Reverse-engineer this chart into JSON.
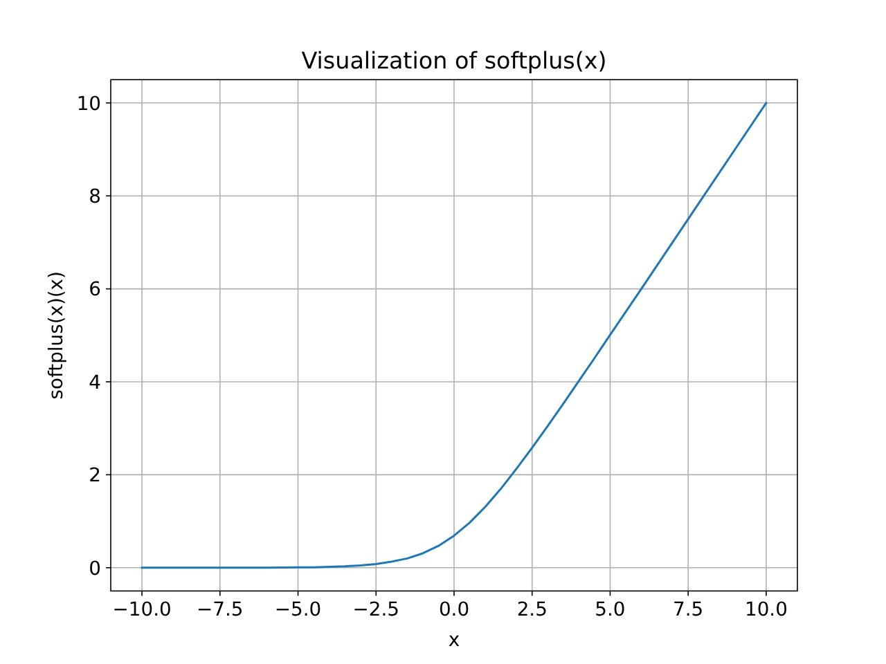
{
  "chart_data": {
    "type": "line",
    "title": "Visualization of softplus(x)",
    "xlabel": "x",
    "ylabel": "softplus(x)(x)",
    "series": [
      {
        "color": "#1f77b4",
        "x": [
          -10,
          -9,
          -8,
          -7,
          -6,
          -5,
          -4.5,
          -4,
          -3.5,
          -3,
          -2.5,
          -2,
          -1.5,
          -1,
          -0.5,
          0,
          0.5,
          1,
          1.5,
          2,
          2.5,
          3,
          3.5,
          4,
          4.5,
          5,
          6,
          7,
          8,
          9,
          10
        ],
        "values": [
          0,
          0,
          0,
          0,
          0,
          0.01,
          0.01,
          0.02,
          0.03,
          0.05,
          0.08,
          0.13,
          0.2,
          0.31,
          0.47,
          0.69,
          0.97,
          1.31,
          1.7,
          2.13,
          2.58,
          3.05,
          3.53,
          4.02,
          4.51,
          5.01,
          6,
          7,
          8,
          9,
          10
        ]
      }
    ],
    "xlim": [
      -11,
      11
    ],
    "ylim": [
      -0.5,
      10.5
    ],
    "xticks": [
      {
        "value": -10,
        "label": "−10.0"
      },
      {
        "value": -7.5,
        "label": "−7.5"
      },
      {
        "value": -5,
        "label": "−5.0"
      },
      {
        "value": -2.5,
        "label": "−2.5"
      },
      {
        "value": 0,
        "label": "0.0"
      },
      {
        "value": 2.5,
        "label": "2.5"
      },
      {
        "value": 5,
        "label": "5.0"
      },
      {
        "value": 7.5,
        "label": "7.5"
      },
      {
        "value": 10,
        "label": "10.0"
      }
    ],
    "yticks": [
      0,
      2,
      4,
      6,
      8,
      10
    ],
    "grid": true
  }
}
